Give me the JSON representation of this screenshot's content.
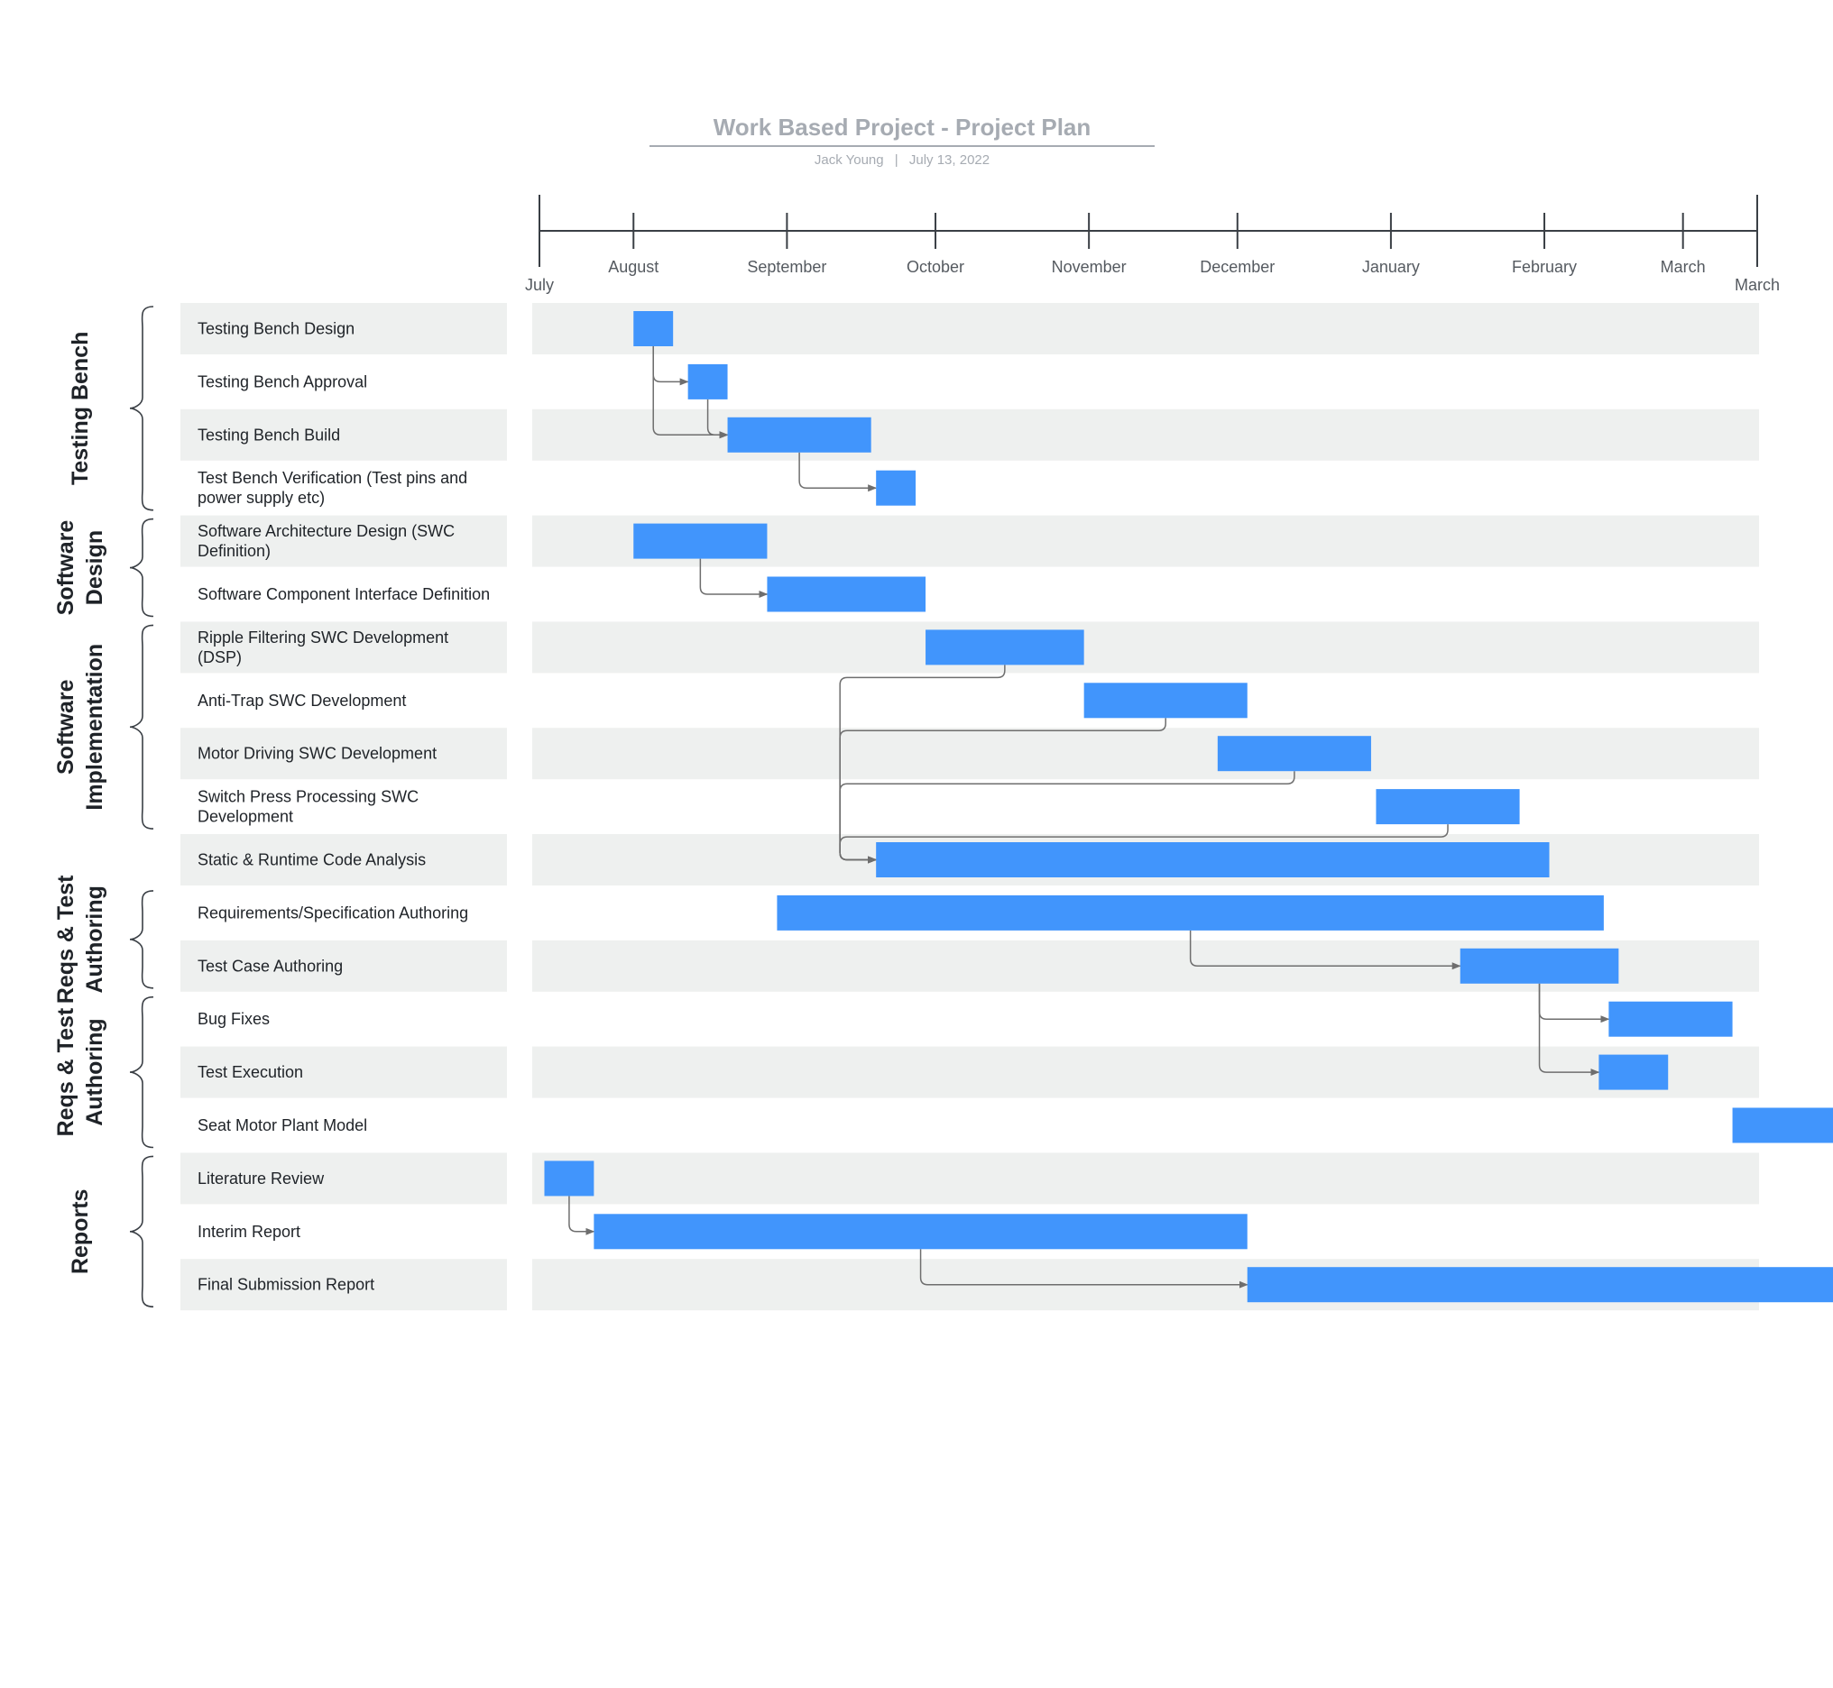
{
  "header": {
    "title": "Work Based Project - Project Plan",
    "author": "Jack Young",
    "date": "July 13, 2022",
    "separator": "|"
  },
  "timeline": {
    "months": [
      "July",
      "August",
      "September",
      "October",
      "November",
      "December",
      "January",
      "February",
      "March",
      "March"
    ],
    "month_days": [
      0,
      19,
      50,
      80,
      111,
      141,
      172,
      203,
      231,
      246
    ]
  },
  "groups": [
    {
      "lines": [
        "Testing Bench"
      ],
      "first_task": 0,
      "last_task": 3
    },
    {
      "lines": [
        "Software",
        "Design"
      ],
      "first_task": 4,
      "last_task": 5
    },
    {
      "lines": [
        "Software",
        "Implementation"
      ],
      "first_task": 6,
      "last_task": 9
    },
    {
      "lines": [
        "Reqs & Test",
        "Authoring"
      ],
      "first_task": 11,
      "last_task": 12
    },
    {
      "lines": [
        "Reqs & Test",
        "Authoring"
      ],
      "first_task": 13,
      "last_task": 15
    },
    {
      "lines": [
        "Reports"
      ],
      "first_task": 16,
      "last_task": 18
    }
  ],
  "tasks": [
    {
      "lines": [
        "Testing Bench Design"
      ],
      "start": "2022-07-20",
      "end": "2022-07-28"
    },
    {
      "lines": [
        "Testing Bench Approval"
      ],
      "start": "2022-07-31",
      "end": "2022-08-08"
    },
    {
      "lines": [
        "Testing Bench Build"
      ],
      "start": "2022-08-08",
      "end": "2022-09-06"
    },
    {
      "lines": [
        "Test Bench Verification (Test pins and",
        "power supply etc)"
      ],
      "start": "2022-09-07",
      "end": "2022-09-15"
    },
    {
      "lines": [
        "Software Architecture Design (SWC",
        "Definition)"
      ],
      "start": "2022-07-20",
      "end": "2022-08-16"
    },
    {
      "lines": [
        "Software Component Interface Definition"
      ],
      "start": "2022-08-16",
      "end": "2022-09-17"
    },
    {
      "lines": [
        "Ripple Filtering SWC Development",
        "(DSP)"
      ],
      "start": "2022-09-17",
      "end": "2022-10-19"
    },
    {
      "lines": [
        "Anti-Trap SWC Development"
      ],
      "start": "2022-10-19",
      "end": "2022-11-21"
    },
    {
      "lines": [
        "Motor Driving SWC Development"
      ],
      "start": "2022-11-15",
      "end": "2022-12-16"
    },
    {
      "lines": [
        "Switch Press Processing SWC",
        "Development"
      ],
      "start": "2022-12-17",
      "end": "2023-01-15"
    },
    {
      "lines": [
        "Static & Runtime Code Analysis"
      ],
      "start": "2022-09-07",
      "end": "2023-01-21"
    },
    {
      "lines": [
        "Requirements/Specification Authoring"
      ],
      "start": "2022-08-18",
      "end": "2023-02-01"
    },
    {
      "lines": [
        "Test Case Authoring"
      ],
      "start": "2023-01-03",
      "end": "2023-02-04"
    },
    {
      "lines": [
        "Bug Fixes"
      ],
      "start": "2023-02-02",
      "end": "2023-02-27"
    },
    {
      "lines": [
        "Test Execution"
      ],
      "start": "2023-01-31",
      "end": "2023-02-14"
    },
    {
      "lines": [
        "Seat Motor Plant Model"
      ],
      "start": "2023-02-27",
      "end": "2023-05-04"
    },
    {
      "lines": [
        "Literature Review"
      ],
      "start": "2022-07-02",
      "end": "2022-07-12"
    },
    {
      "lines": [
        "Interim Report"
      ],
      "start": "2022-07-12",
      "end": "2022-11-21"
    },
    {
      "lines": [
        "Final Submission Report"
      ],
      "start": "2022-11-21",
      "end": "2023-06-21"
    }
  ],
  "dependencies": [
    [
      0,
      1
    ],
    [
      0,
      2
    ],
    [
      1,
      2
    ],
    [
      2,
      3
    ],
    [
      4,
      5
    ],
    [
      6,
      10
    ],
    [
      7,
      10
    ],
    [
      8,
      10
    ],
    [
      9,
      10
    ],
    [
      11,
      12
    ],
    [
      12,
      13
    ],
    [
      12,
      14
    ],
    [
      16,
      17
    ],
    [
      17,
      18
    ]
  ],
  "colors": {
    "bar": "#4195fc",
    "row_band": "#eef0ef",
    "title": "#a6abb2",
    "axis": "#3a3f45",
    "connector": "#6e6e6e"
  }
}
